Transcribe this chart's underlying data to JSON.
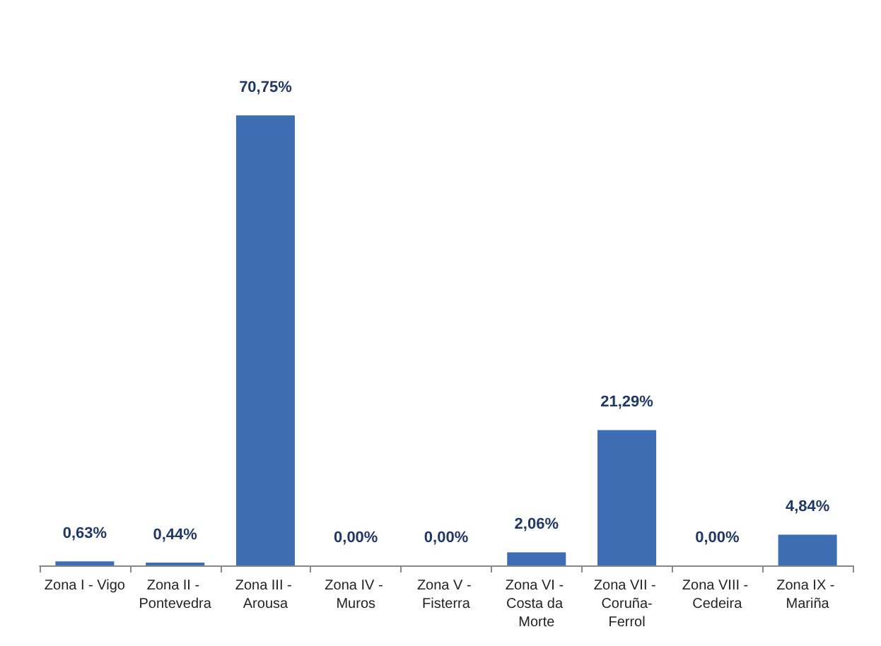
{
  "chart_data": {
    "type": "bar",
    "categories": [
      "Zona I - Vigo",
      "Zona II - Pontevedra",
      "Zona III - Arousa",
      "Zona IV - Muros",
      "Zona V - Fisterra",
      "Zona VI - Costa da Morte",
      "Zona VII - Coruña-Ferrol",
      "Zona VIII - Cedeira",
      "Zona IX - Mariña"
    ],
    "values": [
      0.63,
      0.44,
      70.75,
      0,
      0,
      2.06,
      21.29,
      0,
      4.84
    ],
    "value_labels": [
      "0,63%",
      "0,44%",
      "70,75%",
      "0,00%",
      "0,00%",
      "2,06%",
      "21,29%",
      "0,00%",
      "4,84%"
    ],
    "color": "#3d6db3"
  }
}
